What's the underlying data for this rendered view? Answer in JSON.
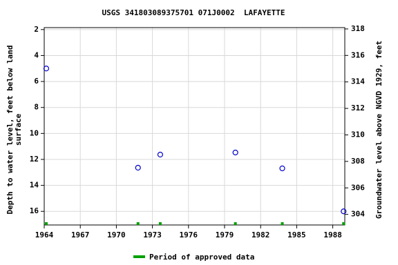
{
  "chart_data": {
    "type": "scatter",
    "title": "USGS 341803089375701 071J0002  LAFAYETTE",
    "ylabel": [
      "Depth to water level, feet below land",
      "surface"
    ],
    "y2label": "Groundwater level above NGVD 1929, feet",
    "series": [
      {
        "name": "Depth to water level",
        "color": "#0000cc",
        "x": [
          1964.17,
          1971.8,
          1973.65,
          1979.9,
          1983.8,
          1988.9
        ],
        "values": [
          5.0,
          12.64,
          11.63,
          11.47,
          12.69,
          16.0
        ]
      }
    ],
    "approved_periods": {
      "name": "Period of approved data",
      "color": "#00a000",
      "x": [
        1964.17,
        1971.8,
        1973.65,
        1979.9,
        1983.8,
        1988.9
      ]
    },
    "xlim": [
      1964,
      1989
    ],
    "xticks": [
      1964,
      1967,
      1970,
      1973,
      1976,
      1979,
      1982,
      1985,
      1988
    ],
    "ylim": [
      1.85,
      17.05
    ],
    "yticks": [
      2,
      4,
      6,
      8,
      10,
      12,
      14,
      16
    ],
    "y2lim": [
      303.2,
      318.1
    ],
    "y2ticks": [
      304,
      306,
      308,
      310,
      312,
      314,
      316,
      318
    ],
    "grid": true
  }
}
